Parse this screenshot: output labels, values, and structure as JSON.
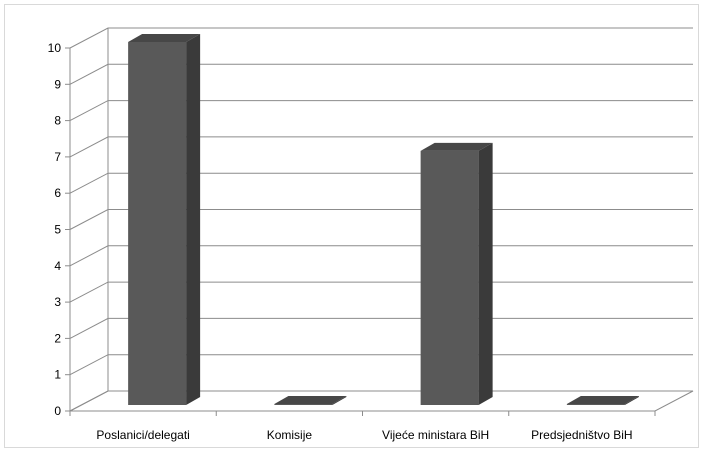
{
  "chart_data": {
    "type": "bar",
    "style": "3d-column",
    "categories": [
      "Poslanici/delegati",
      "Komisije",
      "Vijeće ministara BiH",
      "Predsjedništvo BiH"
    ],
    "series": [
      {
        "values": [
          10,
          0,
          7,
          0
        ]
      }
    ],
    "title": "",
    "xlabel": "",
    "ylabel": "",
    "ylim": [
      0,
      10
    ],
    "y_ticks": [
      "0",
      "1",
      "2",
      "3",
      "4",
      "5",
      "6",
      "7",
      "8",
      "9",
      "10"
    ],
    "grid": true,
    "legend": "none",
    "colors": {
      "bar_front": "#595959",
      "bar_side": "#3a3a3a",
      "bar_top": "#474747",
      "grid": "#8c8c8c",
      "axis": "#8c8c8c"
    }
  }
}
